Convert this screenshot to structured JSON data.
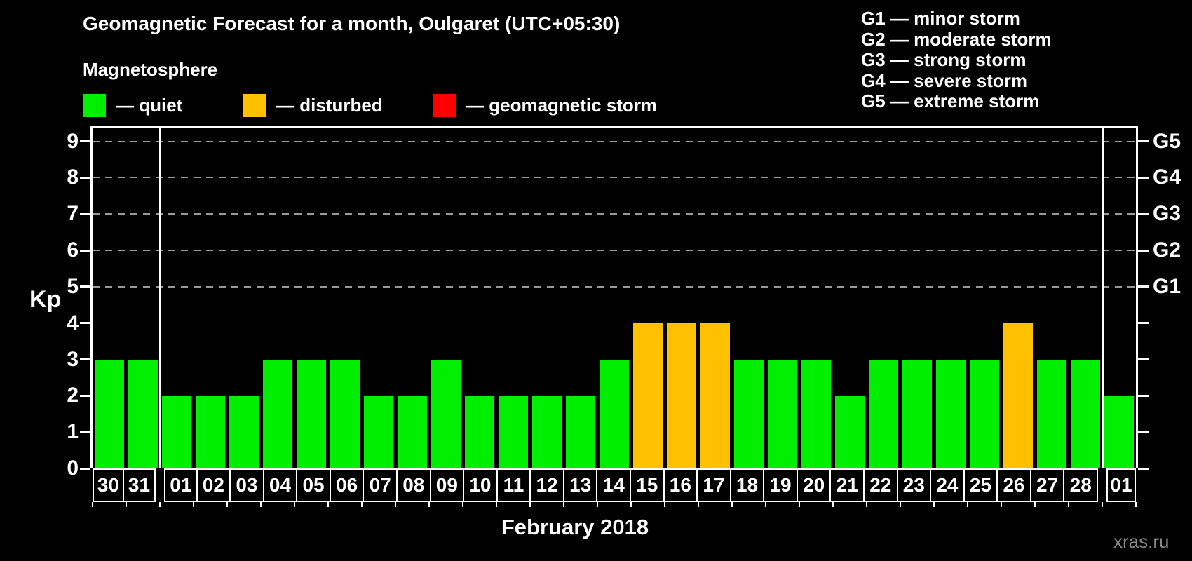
{
  "page": {
    "title": "Geomagnetic Forecast for a month, Oulgaret (UTC+05:30)",
    "watermark": "xras.ru",
    "background": "#000000"
  },
  "magnetosphere_legend": {
    "heading": "Magnetosphere",
    "items": [
      {
        "name": "quiet",
        "label": "— quiet",
        "color": "#00ef00"
      },
      {
        "name": "disturbed",
        "label": "— disturbed",
        "color": "#ffc000"
      },
      {
        "name": "storm",
        "label": "— geomagnetic storm",
        "color": "#ff0000"
      }
    ]
  },
  "storm_scale_legend": {
    "items": [
      "G1 — minor storm",
      "G2 — moderate storm",
      "G3 — strong storm",
      "G4 — severe storm",
      "G5 — extreme storm"
    ]
  },
  "chart_data": {
    "type": "bar",
    "title": "Geomagnetic Forecast for a month, Oulgaret (UTC+05:30)",
    "subtitle": "Magnetosphere",
    "xlabel": "February 2018",
    "ylabel": "Kp",
    "ylim": [
      0,
      9.4
    ],
    "yticks": [
      0,
      1,
      2,
      3,
      4,
      5,
      6,
      7,
      8,
      9
    ],
    "gridlines": {
      "kp_levels": [
        5,
        6,
        7,
        8,
        9
      ],
      "style": "dashed",
      "color": "#999999"
    },
    "right_axis": {
      "labels": [
        {
          "kp": 5,
          "label": "G1"
        },
        {
          "kp": 6,
          "label": "G2"
        },
        {
          "kp": 7,
          "label": "G3"
        },
        {
          "kp": 8,
          "label": "G4"
        },
        {
          "kp": 9,
          "label": "G5"
        }
      ]
    },
    "categories": [
      "30",
      "31",
      "01",
      "02",
      "03",
      "04",
      "05",
      "06",
      "07",
      "08",
      "09",
      "10",
      "11",
      "12",
      "13",
      "14",
      "15",
      "16",
      "17",
      "18",
      "19",
      "20",
      "21",
      "22",
      "23",
      "24",
      "25",
      "26",
      "27",
      "28",
      "01"
    ],
    "values": [
      3,
      3,
      2,
      2,
      2,
      3,
      3,
      3,
      2,
      2,
      3,
      2,
      2,
      2,
      2,
      3,
      4,
      4,
      4,
      3,
      3,
      3,
      2,
      3,
      3,
      3,
      3,
      4,
      3,
      3,
      2
    ],
    "statuses": [
      "quiet",
      "quiet",
      "quiet",
      "quiet",
      "quiet",
      "quiet",
      "quiet",
      "quiet",
      "quiet",
      "quiet",
      "quiet",
      "quiet",
      "quiet",
      "quiet",
      "quiet",
      "quiet",
      "disturbed",
      "disturbed",
      "disturbed",
      "quiet",
      "quiet",
      "quiet",
      "quiet",
      "quiet",
      "quiet",
      "quiet",
      "quiet",
      "disturbed",
      "quiet",
      "quiet",
      "quiet"
    ],
    "status_colors": {
      "quiet": "#00ef00",
      "disturbed": "#ffc000",
      "storm": "#ff0000"
    },
    "month_separator_after": [
      1,
      29
    ],
    "legend_position": "top-left",
    "grid": "dashed horizontal at G-storm levels"
  }
}
